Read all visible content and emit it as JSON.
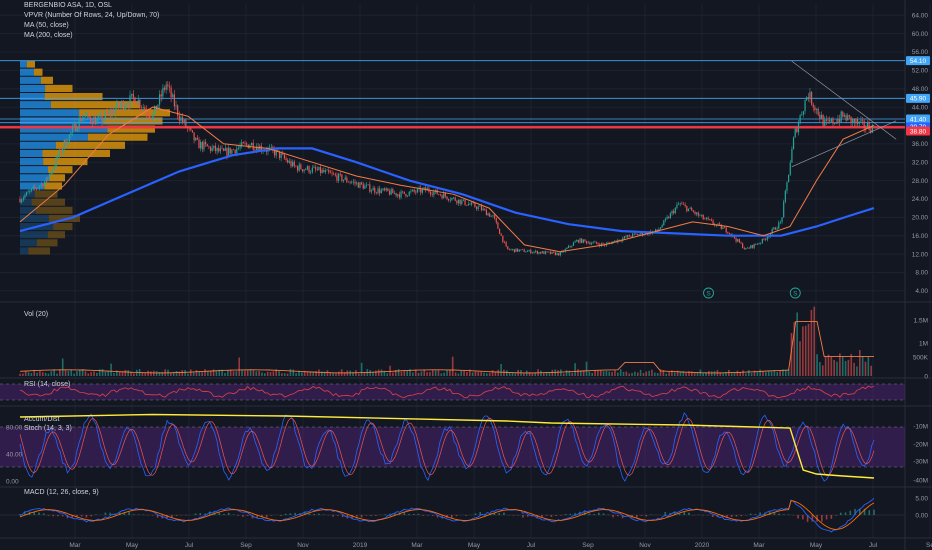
{
  "header": {
    "title": "BERGENBIO ASA, 1D, OSL",
    "vpvr": "VPVR (Number Of Rows, 24, Up/Down, 70)",
    "ma50": "MA (50, close)",
    "ma200": "MA (200, close)"
  },
  "panes": {
    "vol": "Vol (20)",
    "rsi": "RSI (14, close)",
    "accdist": "Accum/Dist",
    "stoch": "Stoch (14, 3, 3)",
    "macd": "MACD (12, 26, close, 9)"
  },
  "colors": {
    "background": "#131722",
    "grid": "#1e222d",
    "up": "#26a69a",
    "down": "#ef5350",
    "ma50": "#f57c44",
    "ma200": "#2962ff",
    "hline": "#42a5f5",
    "redline": "#f23645",
    "vpvr_up": "#2196f3",
    "vpvr_down": "#f0a30a",
    "rsi": "#e04444",
    "pane_band": "#4a2270",
    "accdist": "#ffeb3b",
    "stoch_k": "#2962ff",
    "stoch_d": "#ef5350",
    "macd": "#2962ff",
    "signal": "#ff6d00"
  },
  "chart_data": {
    "type": "line",
    "x_ticks": [
      "Mar",
      "May",
      "Jul",
      "Sep",
      "Nov",
      "2019",
      "Mar",
      "May",
      "Jul",
      "Sep",
      "Nov",
      "2020",
      "Mar",
      "May",
      "Jul",
      "Se"
    ],
    "y_ticks": [
      "64.00",
      "60.00",
      "56.00",
      "52.00",
      "48.00",
      "44.00",
      "40.00",
      "36.00",
      "32.00",
      "28.00",
      "24.00",
      "20.00",
      "16.00",
      "12.00",
      "8.00",
      "4.00"
    ],
    "y_range": [
      2,
      66
    ],
    "price_tags": [
      {
        "label": "54.10",
        "value": 54.1,
        "color": "#42a5f5"
      },
      {
        "label": "45.90",
        "value": 45.9,
        "color": "#42a5f5"
      },
      {
        "label": "41.40",
        "value": 41.4,
        "color": "#42a5f5"
      },
      {
        "label": "39.70",
        "value": 39.7,
        "color": "#2962ff"
      },
      {
        "label": "38.80",
        "value": 38.8,
        "color": "#f23645"
      }
    ],
    "horizontal_lines": [
      54.1,
      45.9,
      41.4,
      40.6
    ],
    "red_line": 39.6,
    "price_series": [
      {
        "t": 0.0,
        "v": 24
      },
      {
        "t": 0.03,
        "v": 28
      },
      {
        "t": 0.05,
        "v": 36
      },
      {
        "t": 0.07,
        "v": 42
      },
      {
        "t": 0.09,
        "v": 41
      },
      {
        "t": 0.11,
        "v": 44
      },
      {
        "t": 0.13,
        "v": 46
      },
      {
        "t": 0.15,
        "v": 42
      },
      {
        "t": 0.165,
        "v": 49
      },
      {
        "t": 0.18,
        "v": 42
      },
      {
        "t": 0.2,
        "v": 36
      },
      {
        "t": 0.23,
        "v": 34
      },
      {
        "t": 0.26,
        "v": 36
      },
      {
        "t": 0.29,
        "v": 34
      },
      {
        "t": 0.31,
        "v": 31
      },
      {
        "t": 0.34,
        "v": 30
      },
      {
        "t": 0.37,
        "v": 28
      },
      {
        "t": 0.4,
        "v": 26
      },
      {
        "t": 0.43,
        "v": 25
      },
      {
        "t": 0.46,
        "v": 26
      },
      {
        "t": 0.49,
        "v": 24
      },
      {
        "t": 0.52,
        "v": 22
      },
      {
        "t": 0.535,
        "v": 20
      },
      {
        "t": 0.55,
        "v": 13
      },
      {
        "t": 0.58,
        "v": 12.5
      },
      {
        "t": 0.61,
        "v": 12
      },
      {
        "t": 0.63,
        "v": 15
      },
      {
        "t": 0.66,
        "v": 14
      },
      {
        "t": 0.69,
        "v": 16
      },
      {
        "t": 0.72,
        "v": 17
      },
      {
        "t": 0.745,
        "v": 23
      },
      {
        "t": 0.77,
        "v": 20
      },
      {
        "t": 0.8,
        "v": 17
      },
      {
        "t": 0.82,
        "v": 13
      },
      {
        "t": 0.84,
        "v": 15
      },
      {
        "t": 0.86,
        "v": 19
      },
      {
        "t": 0.875,
        "v": 38
      },
      {
        "t": 0.89,
        "v": 47
      },
      {
        "t": 0.91,
        "v": 40
      },
      {
        "t": 0.93,
        "v": 42
      },
      {
        "t": 0.95,
        "v": 40
      },
      {
        "t": 0.965,
        "v": 39.5
      }
    ],
    "ma50_series": [
      {
        "t": 0.0,
        "v": 19
      },
      {
        "t": 0.05,
        "v": 27
      },
      {
        "t": 0.1,
        "v": 38
      },
      {
        "t": 0.15,
        "v": 44
      },
      {
        "t": 0.19,
        "v": 42
      },
      {
        "t": 0.23,
        "v": 36
      },
      {
        "t": 0.28,
        "v": 35
      },
      {
        "t": 0.33,
        "v": 32
      },
      {
        "t": 0.38,
        "v": 29
      },
      {
        "t": 0.43,
        "v": 27
      },
      {
        "t": 0.49,
        "v": 25
      },
      {
        "t": 0.53,
        "v": 22
      },
      {
        "t": 0.57,
        "v": 14
      },
      {
        "t": 0.61,
        "v": 12.5
      },
      {
        "t": 0.66,
        "v": 14
      },
      {
        "t": 0.71,
        "v": 16.5
      },
      {
        "t": 0.76,
        "v": 19
      },
      {
        "t": 0.8,
        "v": 18
      },
      {
        "t": 0.84,
        "v": 16
      },
      {
        "t": 0.87,
        "v": 18
      },
      {
        "t": 0.9,
        "v": 28
      },
      {
        "t": 0.93,
        "v": 37
      },
      {
        "t": 0.965,
        "v": 40
      }
    ],
    "ma200_series": [
      {
        "t": 0.0,
        "v": 17
      },
      {
        "t": 0.06,
        "v": 20
      },
      {
        "t": 0.12,
        "v": 25
      },
      {
        "t": 0.18,
        "v": 30
      },
      {
        "t": 0.24,
        "v": 33.5
      },
      {
        "t": 0.29,
        "v": 35
      },
      {
        "t": 0.33,
        "v": 35
      },
      {
        "t": 0.38,
        "v": 32
      },
      {
        "t": 0.44,
        "v": 28
      },
      {
        "t": 0.5,
        "v": 25
      },
      {
        "t": 0.56,
        "v": 21
      },
      {
        "t": 0.62,
        "v": 18.5
      },
      {
        "t": 0.68,
        "v": 17
      },
      {
        "t": 0.74,
        "v": 16.5
      },
      {
        "t": 0.8,
        "v": 16
      },
      {
        "t": 0.86,
        "v": 16
      },
      {
        "t": 0.9,
        "v": 18
      },
      {
        "t": 0.94,
        "v": 20.5
      },
      {
        "t": 0.965,
        "v": 22
      }
    ],
    "vol_ticks": [
      "1.5M",
      "1M",
      "500K",
      "0"
    ],
    "rsi_ticks": [
      "80.00",
      "40.00",
      "0.00"
    ],
    "accdist_ticks": [
      "-10M",
      "-20M",
      "-30M",
      "-40M"
    ],
    "macd_ticks": [
      "5.00",
      "0.00"
    ],
    "event_markers": [
      "S",
      "S"
    ]
  }
}
